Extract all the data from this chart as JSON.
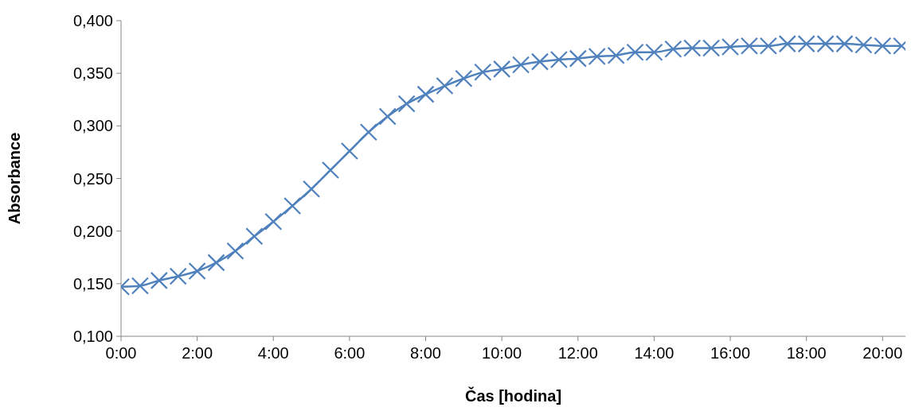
{
  "chart_data": {
    "type": "line",
    "xlabel": "Čas [hodina]",
    "ylabel": "Absorbance",
    "x": [
      0,
      0.5,
      1,
      1.5,
      2,
      2.5,
      3,
      3.5,
      4,
      4.5,
      5,
      5.5,
      6,
      6.5,
      7,
      7.5,
      8,
      8.5,
      9,
      9.5,
      10,
      10.5,
      11,
      11.5,
      12,
      12.5,
      13,
      13.5,
      14,
      14.5,
      15,
      15.5,
      16,
      16.5,
      17,
      17.5,
      18,
      18.5,
      19,
      19.5,
      20,
      20.5
    ],
    "series": [
      {
        "color": "#4f81bd",
        "values": [
          0.147,
          0.148,
          0.153,
          0.157,
          0.162,
          0.17,
          0.181,
          0.195,
          0.209,
          0.224,
          0.24,
          0.258,
          0.276,
          0.294,
          0.309,
          0.321,
          0.33,
          0.338,
          0.345,
          0.351,
          0.354,
          0.358,
          0.361,
          0.363,
          0.364,
          0.366,
          0.367,
          0.37,
          0.37,
          0.373,
          0.374,
          0.374,
          0.375,
          0.376,
          0.376,
          0.378,
          0.378,
          0.378,
          0.378,
          0.377,
          0.376,
          0.376
        ]
      }
    ],
    "xlim": [
      0,
      20.6
    ],
    "xticks": [
      {
        "value": 0,
        "label": "0:00"
      },
      {
        "value": 2,
        "label": "2:00"
      },
      {
        "value": 4,
        "label": "4:00"
      },
      {
        "value": 6,
        "label": "6:00"
      },
      {
        "value": 8,
        "label": "8:00"
      },
      {
        "value": 10,
        "label": "10:00"
      },
      {
        "value": 12,
        "label": "12:00"
      },
      {
        "value": 14,
        "label": "14:00"
      },
      {
        "value": 16,
        "label": "16:00"
      },
      {
        "value": 18,
        "label": "18:00"
      },
      {
        "value": 20,
        "label": "20:00"
      }
    ],
    "ylim": [
      0.1,
      0.4
    ],
    "yticks": [
      {
        "value": 0.1,
        "label": "0,100"
      },
      {
        "value": 0.15,
        "label": "0,150"
      },
      {
        "value": 0.2,
        "label": "0,200"
      },
      {
        "value": 0.25,
        "label": "0,250"
      },
      {
        "value": 0.3,
        "label": "0,300"
      },
      {
        "value": 0.35,
        "label": "0,350"
      },
      {
        "value": 0.4,
        "label": "0,400"
      }
    ],
    "grid": false,
    "legend": false,
    "marker": "cross",
    "line_style": "solid"
  }
}
